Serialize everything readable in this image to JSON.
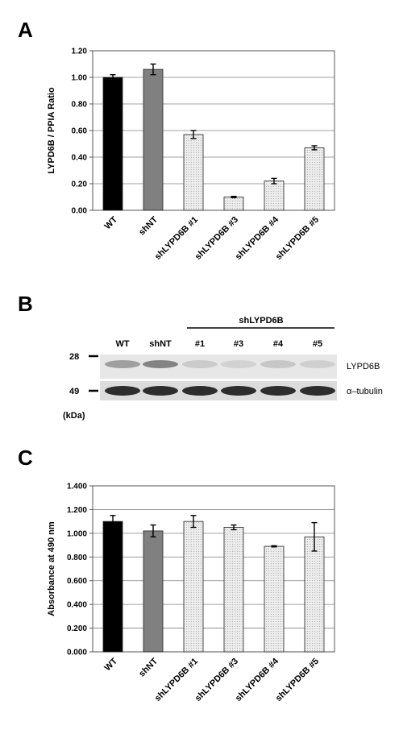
{
  "panels": {
    "a": "A",
    "b": "B",
    "c": "C"
  },
  "chart_data": [
    {
      "panel": "A",
      "type": "bar",
      "title": "",
      "xlabel": "",
      "ylabel": "LYPD6B / PPIA Ratio",
      "ylim": [
        0,
        1.2
      ],
      "yticks": [
        "0.00",
        "0.20",
        "0.40",
        "0.60",
        "0.80",
        "1.00",
        "1.20"
      ],
      "grid": true,
      "categories": [
        "WT",
        "shNT",
        "shLYPD6B #1",
        "shLYPD6B #3",
        "shLYPD6B #4",
        "shLYPD6B #5"
      ],
      "values": [
        1.0,
        1.06,
        0.57,
        0.1,
        0.22,
        0.47
      ],
      "errors": [
        0.02,
        0.04,
        0.03,
        0.005,
        0.02,
        0.015
      ],
      "bar_colors": [
        "#000000",
        "#808080",
        "#e6e6e6",
        "#e6e6e6",
        "#e6e6e6",
        "#e6e6e6"
      ]
    },
    {
      "panel": "C",
      "type": "bar",
      "title": "",
      "xlabel": "",
      "ylabel": "Absorbance at 490 nm",
      "ylim": [
        0,
        1.4
      ],
      "yticks": [
        "0.000",
        "0.200",
        "0.400",
        "0.600",
        "0.800",
        "1.000",
        "1.200",
        "1.400"
      ],
      "grid": true,
      "categories": [
        "WT",
        "shNT",
        "shLYPD6B #1",
        "shLYPD6B #3",
        "shLYPD6B #4",
        "shLYPD6B #5"
      ],
      "values": [
        1.1,
        1.02,
        1.1,
        1.05,
        0.89,
        0.97
      ],
      "errors": [
        0.05,
        0.05,
        0.05,
        0.02,
        0.005,
        0.12
      ],
      "bar_colors": [
        "#000000",
        "#808080",
        "#e6e6e6",
        "#e6e6e6",
        "#e6e6e6",
        "#e6e6e6"
      ]
    }
  ],
  "blot": {
    "group_label": "shLYPD6B",
    "lanes": [
      "WT",
      "shNT",
      "#1",
      "#3",
      "#4",
      "#5"
    ],
    "markers": [
      "28",
      "49"
    ],
    "unit": "(kDa)",
    "bands": [
      {
        "name": "LYPD6B",
        "intensity": [
          0.35,
          0.5,
          0.12,
          0.08,
          0.14,
          0.1
        ]
      },
      {
        "name": "α–tubulin",
        "intensity": [
          0.95,
          0.95,
          0.95,
          0.95,
          0.95,
          0.95
        ]
      }
    ]
  }
}
